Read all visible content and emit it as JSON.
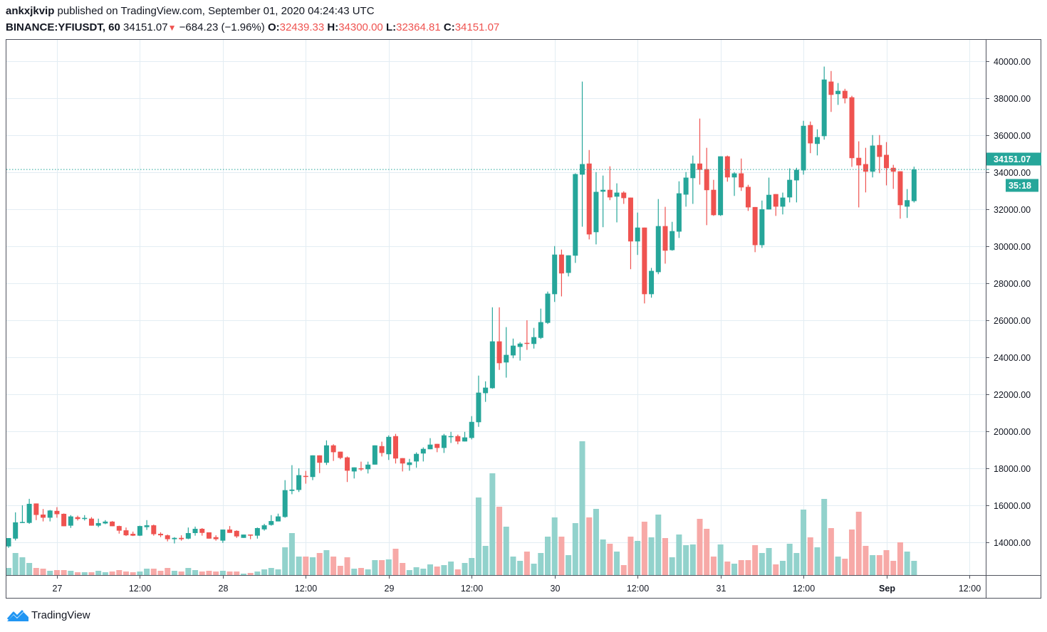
{
  "header": {
    "author": "ankxjkvip",
    "published": "published on TradingView.com, September 01, 2020 04:24:43 UTC",
    "symbol": "BINANCE:YFIUSDT, 60",
    "last": "34151.07",
    "change": "−684.23 (−1.96%)",
    "o_label": "O:",
    "o_value": "32439.33",
    "h_label": "H:",
    "h_value": "34300.00",
    "l_label": "L:",
    "l_value": "32364.81",
    "c_label": "C:",
    "c_value": "34151.07",
    "change_icon": "triangle-down-icon"
  },
  "footer": {
    "brand": "TradingView",
    "logo_icon": "tradingview-logo-icon"
  },
  "colors": {
    "up": "#26a69a",
    "down": "#ef5350",
    "up_volume": "#92d2cc",
    "down_volume": "#f7a9a7",
    "grid": "#e3edf3",
    "price_line": "#26a69a"
  },
  "chart_data": {
    "type": "candlestick",
    "symbol": "BINANCE:YFIUSDT",
    "interval": "60",
    "ylim": [
      13000,
      40500
    ],
    "grid": true,
    "price_ticks": [
      "14000.00",
      "16000.00",
      "18000.00",
      "20000.00",
      "22000.00",
      "24000.00",
      "26000.00",
      "28000.00",
      "30000.00",
      "32000.00",
      "34000.00",
      "36000.00",
      "38000.00",
      "40000.00"
    ],
    "time_ticks": [
      {
        "label": "27",
        "time": "2020-08-27 00:00"
      },
      {
        "label": "12:00",
        "time": "2020-08-27 12:00"
      },
      {
        "label": "28",
        "time": "2020-08-28 00:00"
      },
      {
        "label": "12:00",
        "time": "2020-08-28 12:00"
      },
      {
        "label": "29",
        "time": "2020-08-29 00:00"
      },
      {
        "label": "12:00",
        "time": "2020-08-29 12:00"
      },
      {
        "label": "30",
        "time": "2020-08-30 00:00"
      },
      {
        "label": "12:00",
        "time": "2020-08-30 12:00"
      },
      {
        "label": "31",
        "time": "2020-08-31 00:00"
      },
      {
        "label": "12:00",
        "time": "2020-08-31 12:00"
      },
      {
        "label": "Sep",
        "time": "2020-09-01 00:00",
        "bold": true
      },
      {
        "label": "12:00",
        "time": "2020-09-01 12:00"
      }
    ],
    "last_price": {
      "value": 34151.07,
      "label": "34151.07",
      "countdown": "35:18"
    },
    "columns": [
      "time",
      "open",
      "high",
      "low",
      "close",
      "volume_relative"
    ],
    "candles": [
      [
        "2020-08-26 17:00",
        13780,
        14230,
        13700,
        14230,
        10
      ],
      [
        "2020-08-26 18:00",
        14200,
        15620,
        14100,
        15080,
        31
      ],
      [
        "2020-08-26 19:00",
        15050,
        16000,
        15050,
        15100,
        25
      ],
      [
        "2020-08-26 20:00",
        15050,
        16350,
        15000,
        16080,
        17
      ],
      [
        "2020-08-26 21:00",
        16100,
        16100,
        15200,
        15480,
        10
      ],
      [
        "2020-08-26 22:00",
        15500,
        15800,
        15130,
        15330,
        9
      ],
      [
        "2020-08-26 23:00",
        15330,
        15750,
        15130,
        15720,
        6
      ],
      [
        "2020-08-27 00:00",
        15700,
        15900,
        15330,
        15520,
        7
      ],
      [
        "2020-08-27 01:00",
        15540,
        15560,
        14870,
        14870,
        7
      ],
      [
        "2020-08-27 02:00",
        14900,
        15470,
        14780,
        15400,
        6
      ],
      [
        "2020-08-27 03:00",
        15360,
        15440,
        15180,
        15260,
        4
      ],
      [
        "2020-08-27 04:00",
        15260,
        15470,
        15180,
        15320,
        4
      ],
      [
        "2020-08-27 05:00",
        15280,
        15360,
        14900,
        14900,
        4
      ],
      [
        "2020-08-27 06:00",
        14900,
        15280,
        14820,
        15040,
        6
      ],
      [
        "2020-08-27 07:00",
        15020,
        15200,
        14980,
        15120,
        4
      ],
      [
        "2020-08-27 08:00",
        15120,
        15150,
        14870,
        14870,
        5
      ],
      [
        "2020-08-27 09:00",
        14880,
        14900,
        14470,
        14630,
        7
      ],
      [
        "2020-08-27 10:00",
        14650,
        14800,
        14340,
        14380,
        5
      ],
      [
        "2020-08-27 11:00",
        14460,
        14580,
        14340,
        14360,
        4
      ],
      [
        "2020-08-27 12:00",
        14360,
        14900,
        14340,
        14880,
        5
      ],
      [
        "2020-08-27 13:00",
        14820,
        15200,
        14670,
        14920,
        9
      ],
      [
        "2020-08-27 14:00",
        14920,
        14960,
        14360,
        14440,
        9
      ],
      [
        "2020-08-27 15:00",
        14460,
        14540,
        14280,
        14380,
        6
      ],
      [
        "2020-08-27 16:00",
        14380,
        14420,
        14050,
        14170,
        10
      ],
      [
        "2020-08-27 17:00",
        14170,
        14280,
        13940,
        14240,
        6
      ],
      [
        "2020-08-27 18:00",
        14240,
        14380,
        14090,
        14170,
        5
      ],
      [
        "2020-08-27 19:00",
        14200,
        14800,
        14170,
        14500,
        10
      ],
      [
        "2020-08-27 20:00",
        14500,
        14850,
        14360,
        14730,
        7
      ],
      [
        "2020-08-27 21:00",
        14730,
        14770,
        14360,
        14510,
        5
      ],
      [
        "2020-08-27 22:00",
        14540,
        14540,
        14200,
        14200,
        6
      ],
      [
        "2020-08-27 23:00",
        14280,
        14380,
        14090,
        14170,
        5
      ],
      [
        "2020-08-28 00:00",
        14090,
        14690,
        13970,
        14690,
        6
      ],
      [
        "2020-08-28 01:00",
        14690,
        14880,
        14510,
        14510,
        5
      ],
      [
        "2020-08-28 02:00",
        14620,
        14650,
        14240,
        14320,
        5
      ],
      [
        "2020-08-28 03:00",
        14240,
        14420,
        14240,
        14420,
        2
      ],
      [
        "2020-08-28 04:00",
        14420,
        14420,
        14170,
        14360,
        3
      ],
      [
        "2020-08-28 05:00",
        14360,
        14800,
        14200,
        14770,
        5
      ],
      [
        "2020-08-28 06:00",
        14700,
        15000,
        14630,
        14920,
        8
      ],
      [
        "2020-08-28 07:00",
        14940,
        15470,
        14900,
        15150,
        10
      ],
      [
        "2020-08-28 08:00",
        15130,
        15550,
        15130,
        15400,
        8
      ],
      [
        "2020-08-28 09:00",
        15370,
        17360,
        15330,
        16820,
        39
      ],
      [
        "2020-08-28 10:00",
        16780,
        18170,
        16600,
        16850,
        59
      ],
      [
        "2020-08-28 11:00",
        16830,
        18000,
        16720,
        17630,
        26
      ],
      [
        "2020-08-28 12:00",
        17590,
        17860,
        17170,
        17550,
        26
      ],
      [
        "2020-08-28 13:00",
        17530,
        18700,
        17360,
        18700,
        25
      ],
      [
        "2020-08-28 14:00",
        18700,
        18700,
        17740,
        18300,
        31
      ],
      [
        "2020-08-28 15:00",
        18300,
        19510,
        18180,
        19240,
        35
      ],
      [
        "2020-08-28 16:00",
        19240,
        19300,
        18400,
        18870,
        26
      ],
      [
        "2020-08-28 17:00",
        18900,
        18900,
        18490,
        18560,
        13
      ],
      [
        "2020-08-28 18:00",
        18590,
        18640,
        17260,
        17870,
        25
      ],
      [
        "2020-08-28 19:00",
        17830,
        18050,
        17450,
        18050,
        9
      ],
      [
        "2020-08-28 20:00",
        18000,
        18360,
        17860,
        17950,
        10
      ],
      [
        "2020-08-28 21:00",
        17950,
        18360,
        17720,
        18200,
        8
      ],
      [
        "2020-08-28 22:00",
        18200,
        19240,
        18200,
        19240,
        21
      ],
      [
        "2020-08-28 23:00",
        19200,
        19440,
        18640,
        18830,
        21
      ],
      [
        "2020-08-29 00:00",
        18760,
        19780,
        18450,
        19700,
        22
      ],
      [
        "2020-08-29 01:00",
        19740,
        19860,
        18260,
        18530,
        37
      ],
      [
        "2020-08-29 02:00",
        18550,
        18550,
        17830,
        18260,
        17
      ],
      [
        "2020-08-29 03:00",
        18180,
        18510,
        17870,
        18320,
        7
      ],
      [
        "2020-08-29 04:00",
        18370,
        18860,
        18030,
        18780,
        11
      ],
      [
        "2020-08-29 05:00",
        18800,
        19130,
        18370,
        19050,
        9
      ],
      [
        "2020-08-29 06:00",
        19030,
        19630,
        19030,
        19280,
        15
      ],
      [
        "2020-08-29 07:00",
        19320,
        19320,
        18870,
        19100,
        12
      ],
      [
        "2020-08-29 08:00",
        19100,
        19860,
        18830,
        19780,
        14
      ],
      [
        "2020-08-29 09:00",
        19720,
        19970,
        19370,
        19740,
        19
      ],
      [
        "2020-08-29 10:00",
        19740,
        19820,
        19300,
        19450,
        8
      ],
      [
        "2020-08-29 11:00",
        19450,
        19970,
        19450,
        19670,
        17
      ],
      [
        "2020-08-29 12:00",
        19640,
        20820,
        19560,
        20510,
        24
      ],
      [
        "2020-08-29 13:00",
        20490,
        23010,
        20240,
        22090,
        109
      ],
      [
        "2020-08-29 14:00",
        22060,
        22700,
        21590,
        22360,
        41
      ],
      [
        "2020-08-29 15:00",
        22330,
        26700,
        22300,
        24860,
        143
      ],
      [
        "2020-08-29 16:00",
        24860,
        26700,
        23320,
        23680,
        96
      ],
      [
        "2020-08-29 17:00",
        23720,
        25630,
        22900,
        24130,
        68
      ],
      [
        "2020-08-29 18:00",
        24100,
        25010,
        23950,
        24630,
        26
      ],
      [
        "2020-08-29 19:00",
        24560,
        24820,
        23820,
        24740,
        20
      ],
      [
        "2020-08-29 20:00",
        24780,
        26000,
        24400,
        24740,
        33
      ],
      [
        "2020-08-29 21:00",
        24720,
        25590,
        24470,
        25090,
        16
      ],
      [
        "2020-08-29 22:00",
        25050,
        26630,
        24990,
        25900,
        31
      ],
      [
        "2020-08-29 23:00",
        25860,
        27550,
        25800,
        27440,
        54
      ],
      [
        "2020-08-30 00:00",
        27410,
        30010,
        26990,
        29550,
        81
      ],
      [
        "2020-08-30 01:00",
        29550,
        29820,
        27290,
        28530,
        54
      ],
      [
        "2020-08-30 02:00",
        28560,
        29510,
        28370,
        29510,
        28
      ],
      [
        "2020-08-30 03:00",
        29490,
        33940,
        29100,
        33900,
        73
      ],
      [
        "2020-08-30 04:00",
        33870,
        38900,
        31060,
        34440,
        188
      ],
      [
        "2020-08-30 05:00",
        34470,
        35200,
        30370,
        30640,
        81
      ],
      [
        "2020-08-30 06:00",
        30760,
        34010,
        30100,
        32940,
        93
      ],
      [
        "2020-08-30 07:00",
        32950,
        33820,
        31030,
        33050,
        50
      ],
      [
        "2020-08-30 08:00",
        33050,
        34320,
        32490,
        32640,
        44
      ],
      [
        "2020-08-30 09:00",
        32680,
        33400,
        31290,
        32900,
        33
      ],
      [
        "2020-08-30 10:00",
        32900,
        32970,
        32290,
        32600,
        14
      ],
      [
        "2020-08-30 11:00",
        32630,
        32630,
        28760,
        30260,
        54
      ],
      [
        "2020-08-30 12:00",
        30260,
        31820,
        29530,
        31010,
        48
      ],
      [
        "2020-08-30 13:00",
        31010,
        31010,
        26910,
        27410,
        75
      ],
      [
        "2020-08-30 14:00",
        27410,
        28830,
        27220,
        28670,
        53
      ],
      [
        "2020-08-30 15:00",
        28600,
        32550,
        28490,
        31090,
        85
      ],
      [
        "2020-08-30 16:00",
        31090,
        32130,
        29060,
        29760,
        52
      ],
      [
        "2020-08-30 17:00",
        29790,
        31320,
        29760,
        30820,
        25
      ],
      [
        "2020-08-30 18:00",
        30790,
        33510,
        30450,
        32860,
        57
      ],
      [
        "2020-08-30 19:00",
        32790,
        34010,
        32140,
        33710,
        42
      ],
      [
        "2020-08-30 20:00",
        33680,
        34900,
        32290,
        34470,
        43
      ],
      [
        "2020-08-30 21:00",
        34470,
        36900,
        33330,
        34130,
        79
      ],
      [
        "2020-08-30 22:00",
        34170,
        35320,
        31140,
        33030,
        65
      ],
      [
        "2020-08-30 23:00",
        33050,
        33590,
        31640,
        31680,
        26
      ],
      [
        "2020-08-31 00:00",
        31680,
        34860,
        31640,
        34860,
        43
      ],
      [
        "2020-08-31 01:00",
        34860,
        34900,
        33490,
        33720,
        19
      ],
      [
        "2020-08-31 02:00",
        33720,
        34010,
        32720,
        33940,
        16
      ],
      [
        "2020-08-31 03:00",
        33940,
        34740,
        32990,
        33180,
        21
      ],
      [
        "2020-08-31 04:00",
        33210,
        33320,
        31910,
        32100,
        21
      ],
      [
        "2020-08-31 05:00",
        32120,
        32120,
        29680,
        30060,
        42
      ],
      [
        "2020-08-31 06:00",
        30060,
        32470,
        29910,
        32000,
        31
      ],
      [
        "2020-08-31 07:00",
        31990,
        33710,
        31990,
        32780,
        38
      ],
      [
        "2020-08-31 08:00",
        32820,
        32820,
        31640,
        32140,
        15
      ],
      [
        "2020-08-31 09:00",
        32140,
        32900,
        31720,
        32630,
        20
      ],
      [
        "2020-08-31 10:00",
        32640,
        34210,
        32370,
        33590,
        44
      ],
      [
        "2020-08-31 11:00",
        33560,
        34240,
        32370,
        34130,
        31
      ],
      [
        "2020-08-31 12:00",
        34100,
        36780,
        33870,
        36510,
        92
      ],
      [
        "2020-08-31 13:00",
        36550,
        36740,
        35030,
        35560,
        53
      ],
      [
        "2020-08-31 14:00",
        35530,
        36320,
        34910,
        35900,
        39
      ],
      [
        "2020-08-31 15:00",
        35950,
        39710,
        35760,
        39010,
        107
      ],
      [
        "2020-08-31 16:00",
        38900,
        39470,
        37260,
        38180,
        66
      ],
      [
        "2020-08-31 17:00",
        38220,
        38820,
        37640,
        38400,
        26
      ],
      [
        "2020-08-31 18:00",
        38400,
        38510,
        37720,
        37990,
        23
      ],
      [
        "2020-08-31 19:00",
        38050,
        38130,
        34290,
        34760,
        64
      ],
      [
        "2020-08-31 20:00",
        34780,
        35670,
        32100,
        34370,
        89
      ],
      [
        "2020-08-31 21:00",
        34440,
        35320,
        32910,
        34030,
        41
      ],
      [
        "2020-08-31 22:00",
        34030,
        36010,
        33720,
        35440,
        28
      ],
      [
        "2020-08-31 23:00",
        35470,
        36010,
        33950,
        34830,
        28
      ],
      [
        "2020-09-01 00:00",
        34940,
        35630,
        33290,
        34220,
        35
      ],
      [
        "2020-09-01 01:00",
        34240,
        34400,
        33100,
        34030,
        20
      ],
      [
        "2020-09-01 02:00",
        34050,
        34050,
        31490,
        32220,
        46
      ],
      [
        "2020-09-01 03:00",
        32140,
        33090,
        31530,
        32490,
        33
      ],
      [
        "2020-09-01 04:00",
        32439.33,
        34300,
        32364.81,
        34151.07,
        20
      ]
    ]
  }
}
